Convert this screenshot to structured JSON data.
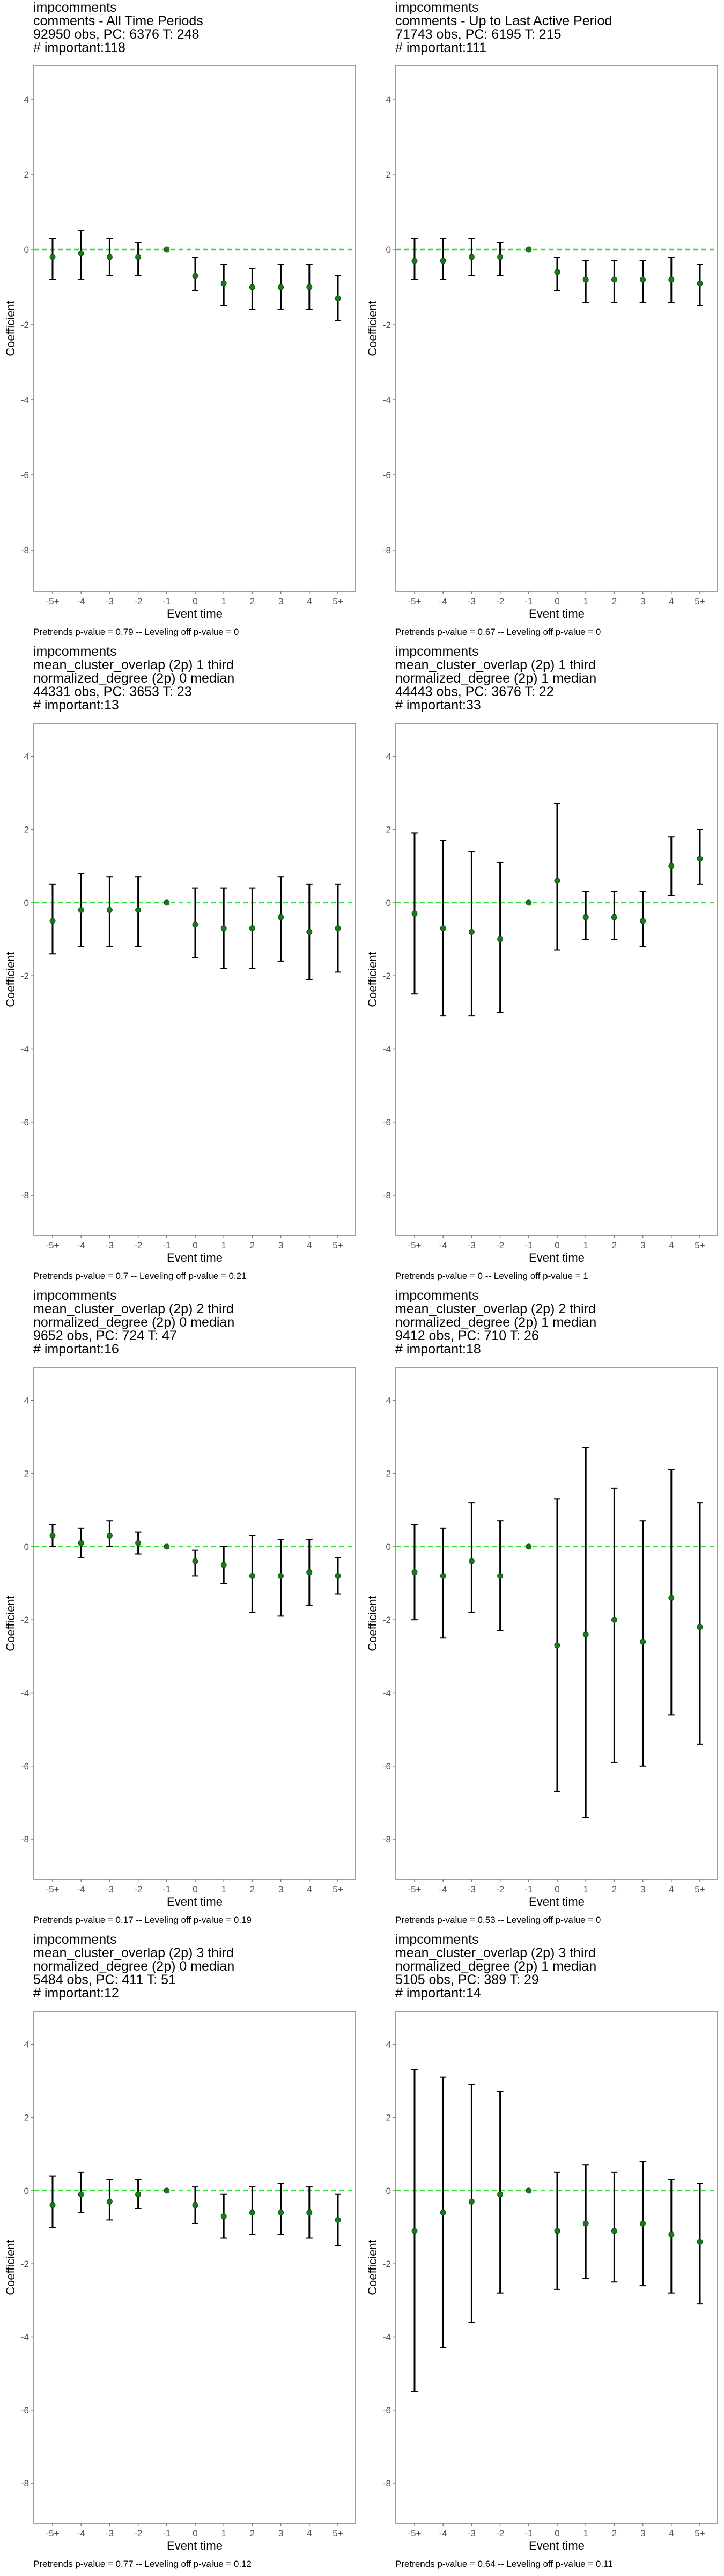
{
  "colors": {
    "point": "#1a7a1a",
    "reference_line": "#33dd33",
    "error_bar": "#000000",
    "frame": "#7f7f7f"
  },
  "chart_data": [
    {
      "type": "scatter",
      "title_lines": [
        "impcomments",
        "comments - All Time Periods",
        "92950 obs, PC: 6376 T: 248",
        "# important:118"
      ],
      "xlabel": "Event time",
      "ylabel": "Coefficient",
      "x": [
        "-5+",
        "-4",
        "-3",
        "-2",
        "-1",
        "0",
        "1",
        "2",
        "3",
        "4",
        "5+"
      ],
      "y": [
        -0.2,
        -0.1,
        -0.2,
        -0.2,
        0,
        -0.7,
        -0.9,
        -1.0,
        -1.0,
        -1.0,
        -1.3
      ],
      "ci": [
        [
          -0.8,
          0.3
        ],
        [
          -0.8,
          0.5
        ],
        [
          -0.7,
          0.3
        ],
        [
          -0.7,
          0.2
        ],
        [
          0,
          0
        ],
        [
          -1.1,
          -0.2
        ],
        [
          -1.5,
          -0.4
        ],
        [
          -1.6,
          -0.5
        ],
        [
          -1.6,
          -0.4
        ],
        [
          -1.6,
          -0.4
        ],
        [
          -1.9,
          -0.7
        ]
      ],
      "ylim": [
        -9.1,
        4.9
      ],
      "yticks": [
        -8,
        -6,
        -4,
        -2,
        0,
        2,
        4
      ],
      "footer": "Pretrends p-value = 0.79 -- Leveling off p-value = 0"
    },
    {
      "type": "scatter",
      "title_lines": [
        "impcomments",
        "comments - Up to Last Active Period",
        "71743 obs, PC: 6195 T: 215",
        "# important:111"
      ],
      "xlabel": "Event time",
      "ylabel": "Coefficient",
      "x": [
        "-5+",
        "-4",
        "-3",
        "-2",
        "-1",
        "0",
        "1",
        "2",
        "3",
        "4",
        "5+"
      ],
      "y": [
        -0.3,
        -0.3,
        -0.2,
        -0.2,
        0,
        -0.6,
        -0.8,
        -0.8,
        -0.8,
        -0.8,
        -0.9
      ],
      "ci": [
        [
          -0.8,
          0.3
        ],
        [
          -0.8,
          0.3
        ],
        [
          -0.7,
          0.3
        ],
        [
          -0.7,
          0.2
        ],
        [
          0,
          0
        ],
        [
          -1.1,
          -0.2
        ],
        [
          -1.4,
          -0.3
        ],
        [
          -1.4,
          -0.3
        ],
        [
          -1.4,
          -0.3
        ],
        [
          -1.4,
          -0.2
        ],
        [
          -1.5,
          -0.4
        ]
      ],
      "ylim": [
        -9.1,
        4.9
      ],
      "yticks": [
        -8,
        -6,
        -4,
        -2,
        0,
        2,
        4
      ],
      "footer": "Pretrends p-value = 0.67 -- Leveling off p-value = 0"
    },
    {
      "type": "scatter",
      "title_lines": [
        "impcomments",
        "mean_cluster_overlap (2p) 1 third",
        "normalized_degree (2p) 0 median",
        "44331 obs, PC: 3653 T: 23",
        "# important:13"
      ],
      "xlabel": "Event time",
      "ylabel": "Coefficient",
      "x": [
        "-5+",
        "-4",
        "-3",
        "-2",
        "-1",
        "0",
        "1",
        "2",
        "3",
        "4",
        "5+"
      ],
      "y": [
        -0.5,
        -0.2,
        -0.2,
        -0.2,
        0,
        -0.6,
        -0.7,
        -0.7,
        -0.4,
        -0.8,
        -0.7
      ],
      "ci": [
        [
          -1.4,
          0.5
        ],
        [
          -1.2,
          0.8
        ],
        [
          -1.2,
          0.7
        ],
        [
          -1.2,
          0.7
        ],
        [
          0,
          0
        ],
        [
          -1.5,
          0.4
        ],
        [
          -1.8,
          0.4
        ],
        [
          -1.8,
          0.4
        ],
        [
          -1.6,
          0.7
        ],
        [
          -2.1,
          0.5
        ],
        [
          -1.9,
          0.5
        ]
      ],
      "ylim": [
        -9.1,
        4.9
      ],
      "yticks": [
        -8,
        -6,
        -4,
        -2,
        0,
        2,
        4
      ],
      "footer": "Pretrends p-value = 0.7 -- Leveling off p-value = 0.21"
    },
    {
      "type": "scatter",
      "title_lines": [
        "impcomments",
        "mean_cluster_overlap (2p) 1 third",
        "normalized_degree (2p) 1 median",
        "44443 obs, PC: 3676 T: 22",
        "# important:33"
      ],
      "xlabel": "Event time",
      "ylabel": "Coefficient",
      "x": [
        "-5+",
        "-4",
        "-3",
        "-2",
        "-1",
        "0",
        "1",
        "2",
        "3",
        "4",
        "5+"
      ],
      "y": [
        -0.3,
        -0.7,
        -0.8,
        -1.0,
        0,
        0.6,
        -0.4,
        -0.4,
        -0.5,
        1.0,
        1.2
      ],
      "ci": [
        [
          -2.5,
          1.9
        ],
        [
          -3.1,
          1.7
        ],
        [
          -3.1,
          1.4
        ],
        [
          -3.0,
          1.1
        ],
        [
          0,
          0
        ],
        [
          -1.3,
          2.7
        ],
        [
          -1.0,
          0.3
        ],
        [
          -1.0,
          0.3
        ],
        [
          -1.2,
          0.3
        ],
        [
          0.2,
          1.8
        ],
        [
          0.5,
          2.0
        ]
      ],
      "ylim": [
        -9.1,
        4.9
      ],
      "yticks": [
        -8,
        -6,
        -4,
        -2,
        0,
        2,
        4
      ],
      "footer": "Pretrends p-value = 0 -- Leveling off p-value = 1"
    },
    {
      "type": "scatter",
      "title_lines": [
        "impcomments",
        "mean_cluster_overlap (2p) 2 third",
        "normalized_degree (2p) 0 median",
        "9652 obs, PC: 724 T: 47",
        "# important:16"
      ],
      "xlabel": "Event time",
      "ylabel": "Coefficient",
      "x": [
        "-5+",
        "-4",
        "-3",
        "-2",
        "-1",
        "0",
        "1",
        "2",
        "3",
        "4",
        "5+"
      ],
      "y": [
        0.3,
        0.1,
        0.3,
        0.1,
        0,
        -0.4,
        -0.5,
        -0.8,
        -0.8,
        -0.7,
        -0.8
      ],
      "ci": [
        [
          0.0,
          0.6
        ],
        [
          -0.3,
          0.5
        ],
        [
          0.0,
          0.7
        ],
        [
          -0.2,
          0.4
        ],
        [
          0,
          0
        ],
        [
          -0.8,
          -0.1
        ],
        [
          -1.0,
          0.0
        ],
        [
          -1.8,
          0.3
        ],
        [
          -1.9,
          0.2
        ],
        [
          -1.6,
          0.2
        ],
        [
          -1.3,
          -0.3
        ]
      ],
      "ylim": [
        -9.1,
        4.9
      ],
      "yticks": [
        -8,
        -6,
        -4,
        -2,
        0,
        2,
        4
      ],
      "footer": "Pretrends p-value = 0.17 -- Leveling off p-value = 0.19"
    },
    {
      "type": "scatter",
      "title_lines": [
        "impcomments",
        "mean_cluster_overlap (2p) 2 third",
        "normalized_degree (2p) 1 median",
        "9412 obs, PC: 710 T: 26",
        "# important:18"
      ],
      "xlabel": "Event time",
      "ylabel": "Coefficient",
      "x": [
        "-5+",
        "-4",
        "-3",
        "-2",
        "-1",
        "0",
        "1",
        "2",
        "3",
        "4",
        "5+"
      ],
      "y": [
        -0.7,
        -0.8,
        -0.4,
        -0.8,
        0,
        -2.7,
        -2.4,
        -2.0,
        -2.6,
        -1.4,
        -2.2
      ],
      "ci": [
        [
          -2.0,
          0.6
        ],
        [
          -2.5,
          0.5
        ],
        [
          -1.8,
          1.2
        ],
        [
          -2.3,
          0.7
        ],
        [
          0,
          0
        ],
        [
          -6.7,
          1.3
        ],
        [
          -7.4,
          2.7
        ],
        [
          -5.9,
          1.6
        ],
        [
          -6.0,
          0.7
        ],
        [
          -4.6,
          2.1
        ],
        [
          -5.4,
          1.2
        ]
      ],
      "ylim": [
        -9.1,
        4.9
      ],
      "yticks": [
        -8,
        -6,
        -4,
        -2,
        0,
        2,
        4
      ],
      "footer": "Pretrends p-value = 0.53 -- Leveling off p-value = 0"
    },
    {
      "type": "scatter",
      "title_lines": [
        "impcomments",
        "mean_cluster_overlap (2p) 3 third",
        "normalized_degree (2p) 0 median",
        "5484 obs, PC: 411 T: 51",
        "# important:12"
      ],
      "xlabel": "Event time",
      "ylabel": "Coefficient",
      "x": [
        "-5+",
        "-4",
        "-3",
        "-2",
        "-1",
        "0",
        "1",
        "2",
        "3",
        "4",
        "5+"
      ],
      "y": [
        -0.4,
        -0.1,
        -0.3,
        -0.1,
        0,
        -0.4,
        -0.7,
        -0.6,
        -0.6,
        -0.6,
        -0.8
      ],
      "ci": [
        [
          -1.0,
          0.4
        ],
        [
          -0.6,
          0.5
        ],
        [
          -0.8,
          0.3
        ],
        [
          -0.5,
          0.3
        ],
        [
          0,
          0
        ],
        [
          -0.9,
          0.1
        ],
        [
          -1.3,
          -0.1
        ],
        [
          -1.2,
          0.1
        ],
        [
          -1.2,
          0.2
        ],
        [
          -1.3,
          0.1
        ],
        [
          -1.5,
          -0.1
        ]
      ],
      "ylim": [
        -9.1,
        4.9
      ],
      "yticks": [
        -8,
        -6,
        -4,
        -2,
        0,
        2,
        4
      ],
      "footer": "Pretrends p-value = 0.77 -- Leveling off p-value = 0.12"
    },
    {
      "type": "scatter",
      "title_lines": [
        "impcomments",
        "mean_cluster_overlap (2p) 3 third",
        "normalized_degree (2p) 1 median",
        "5105 obs, PC: 389 T: 29",
        "# important:14"
      ],
      "xlabel": "Event time",
      "ylabel": "Coefficient",
      "x": [
        "-5+",
        "-4",
        "-3",
        "-2",
        "-1",
        "0",
        "1",
        "2",
        "3",
        "4",
        "5+"
      ],
      "y": [
        -1.1,
        -0.6,
        -0.3,
        -0.1,
        0,
        -1.1,
        -0.9,
        -1.1,
        -0.9,
        -1.2,
        -1.4
      ],
      "ci": [
        [
          -5.5,
          3.3
        ],
        [
          -4.3,
          3.1
        ],
        [
          -3.6,
          2.9
        ],
        [
          -2.8,
          2.7
        ],
        [
          0,
          0
        ],
        [
          -2.7,
          0.5
        ],
        [
          -2.4,
          0.7
        ],
        [
          -2.5,
          0.5
        ],
        [
          -2.6,
          0.8
        ],
        [
          -2.8,
          0.3
        ],
        [
          -3.1,
          0.2
        ]
      ],
      "ylim": [
        -9.1,
        4.9
      ],
      "yticks": [
        -8,
        -6,
        -4,
        -2,
        0,
        2,
        4
      ],
      "footer": "Pretrends p-value = 0.64 -- Leveling off p-value = 0.11"
    }
  ]
}
